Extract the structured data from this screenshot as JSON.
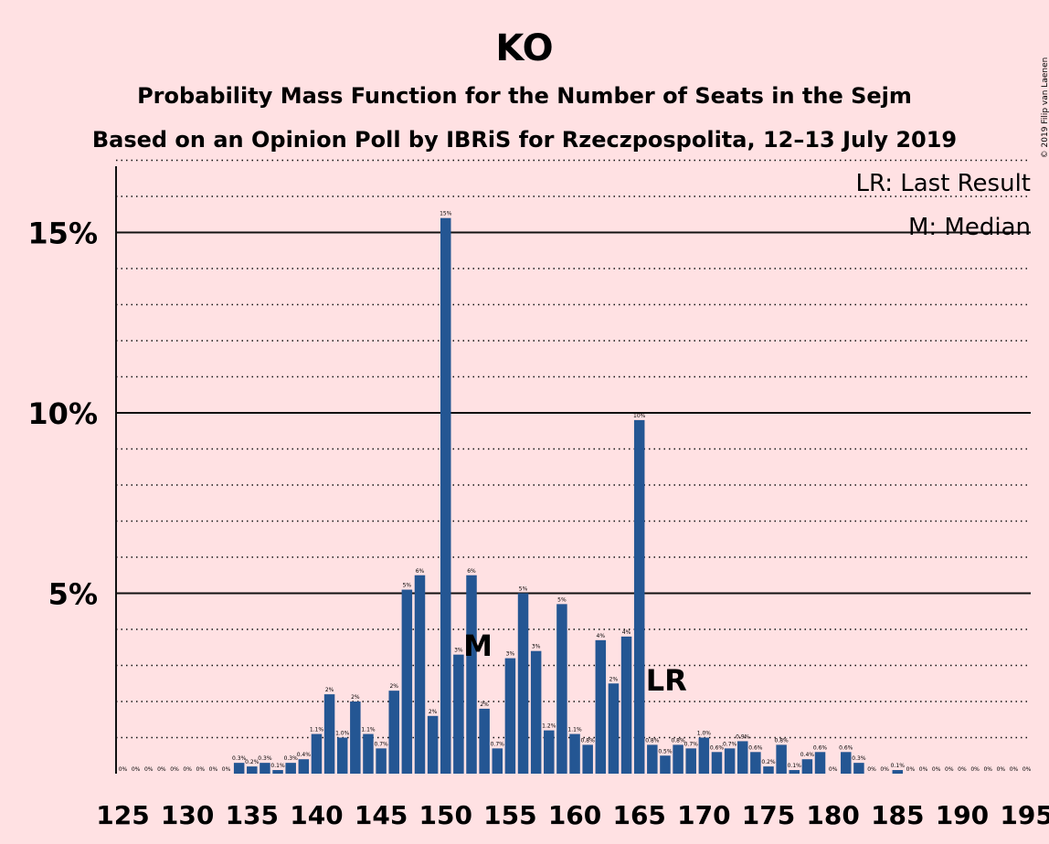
{
  "chart_data": {
    "type": "bar",
    "title": "KO",
    "subtitle_1": "Probability Mass Function for the Number of Seats in the Sejm",
    "subtitle_2": "Based on an Opinion Poll by IBRiS for Rzeczpospolita, 12–13 July 2019",
    "copyright": "© 2019 Filip van Laenen",
    "legend": {
      "last_result": "LR: Last Result",
      "median": "M: Median",
      "placement": "top-right"
    },
    "markers": {
      "median": {
        "label": "M",
        "seat": 153
      },
      "last_result": {
        "label": "LR",
        "seat": 166
      }
    },
    "bar_color": "#245693",
    "x_ticks": [
      125,
      130,
      135,
      140,
      145,
      150,
      155,
      160,
      165,
      170,
      175,
      180,
      185,
      190,
      195
    ],
    "x_tick_labels": [
      "125",
      "130",
      "135",
      "140",
      "145",
      "150",
      "155",
      "160",
      "165",
      "170",
      "175",
      "180",
      "185",
      "190",
      "195"
    ],
    "y_ticks": [
      {
        "value": 5,
        "label": "5%"
      },
      {
        "value": 10,
        "label": "10%"
      },
      {
        "value": 15,
        "label": "15%"
      }
    ],
    "ylim": [
      0,
      17
    ],
    "xlim": [
      124,
      196
    ],
    "grid": "dotted every 1%, solid every 5%",
    "seats": [
      125,
      126,
      127,
      128,
      129,
      130,
      131,
      132,
      133,
      134,
      135,
      136,
      137,
      138,
      139,
      140,
      141,
      142,
      143,
      144,
      145,
      146,
      147,
      148,
      149,
      150,
      151,
      152,
      153,
      154,
      155,
      156,
      157,
      158,
      159,
      160,
      161,
      162,
      163,
      164,
      165,
      166,
      167,
      168,
      169,
      170,
      171,
      172,
      173,
      174,
      175,
      176,
      177,
      178,
      179,
      180,
      181,
      182,
      183,
      184,
      185,
      186,
      187,
      188,
      189,
      190,
      191,
      192,
      193,
      194,
      195
    ],
    "values": [
      0,
      0,
      0,
      0,
      0,
      0,
      0,
      0,
      0,
      0.3,
      0.2,
      0.3,
      0.1,
      0.3,
      0.4,
      1.1,
      2.2,
      1.0,
      2.0,
      1.1,
      0.7,
      2.3,
      5.1,
      5.5,
      1.6,
      15.4,
      3.3,
      5.5,
      1.8,
      0.7,
      3.2,
      5.0,
      3.4,
      1.2,
      4.7,
      1.1,
      0.8,
      3.7,
      2.5,
      3.8,
      9.8,
      0.8,
      0.5,
      0.8,
      0.7,
      1.0,
      0.6,
      0.7,
      0.9,
      0.6,
      0.2,
      0.8,
      0.1,
      0.4,
      0.6,
      0,
      0.6,
      0.3,
      0,
      0,
      0.1,
      0,
      0,
      0,
      0,
      0,
      0,
      0,
      0,
      0,
      0
    ],
    "value_labels": [
      "0%",
      "0%",
      "0%",
      "0%",
      "0%",
      "0%",
      "0%",
      "0%",
      "0%",
      "0.3%",
      "0.2%",
      "0.3%",
      "0.1%",
      "0.3%",
      "0.4%",
      "1.1%",
      "2%",
      "1.0%",
      "2%",
      "1.1%",
      "0.7%",
      "2%",
      "5%",
      "6%",
      "2%",
      "15%",
      "3%",
      "6%",
      "2%",
      "0.7%",
      "3%",
      "5%",
      "3%",
      "1.2%",
      "5%",
      "1.1%",
      "0.8%",
      "4%",
      "2%",
      "4%",
      "10%",
      "0.8%",
      "0.5%",
      "0.8%",
      "0.7%",
      "1.0%",
      "0.6%",
      "0.7%",
      "0.9%",
      "0.6%",
      "0.2%",
      "0.8%",
      "0.1%",
      "0.4%",
      "0.6%",
      "0%",
      "0.6%",
      "0.3%",
      "0%",
      "0%",
      "0.1%",
      "0%",
      "0%",
      "0%",
      "0%",
      "0%",
      "0%",
      "0%",
      "0%",
      "0%",
      "0%"
    ]
  }
}
